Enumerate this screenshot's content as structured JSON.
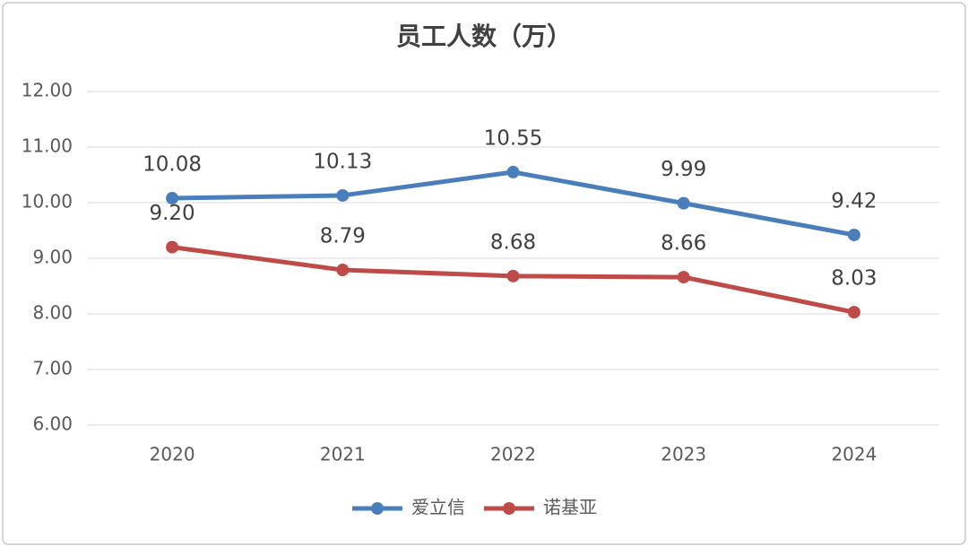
{
  "chart_data": {
    "type": "line",
    "title": "员工人数（万）",
    "categories": [
      "2020",
      "2021",
      "2022",
      "2023",
      "2024"
    ],
    "series": [
      {
        "name": "爱立信",
        "color": "#4a7ebb",
        "values": [
          10.08,
          10.13,
          10.55,
          9.99,
          9.42
        ],
        "value_labels": [
          "10.08",
          "10.13",
          "10.55",
          "9.99",
          "9.42"
        ]
      },
      {
        "name": "诺基亚",
        "color": "#be4b48",
        "values": [
          9.2,
          8.79,
          8.68,
          8.66,
          8.03
        ],
        "value_labels": [
          "9.20",
          "8.79",
          "8.68",
          "8.66",
          "8.03"
        ]
      }
    ],
    "ylim": [
      6,
      12
    ],
    "yticks": [
      {
        "value": 6,
        "label": "6.00"
      },
      {
        "value": 7,
        "label": "7.00"
      },
      {
        "value": 8,
        "label": "8.00"
      },
      {
        "value": 9,
        "label": "9.00"
      },
      {
        "value": 10,
        "label": "10.00"
      },
      {
        "value": 11,
        "label": "11.00"
      },
      {
        "value": 12,
        "label": "12.00"
      }
    ],
    "grid": true,
    "legend": "bottom"
  }
}
